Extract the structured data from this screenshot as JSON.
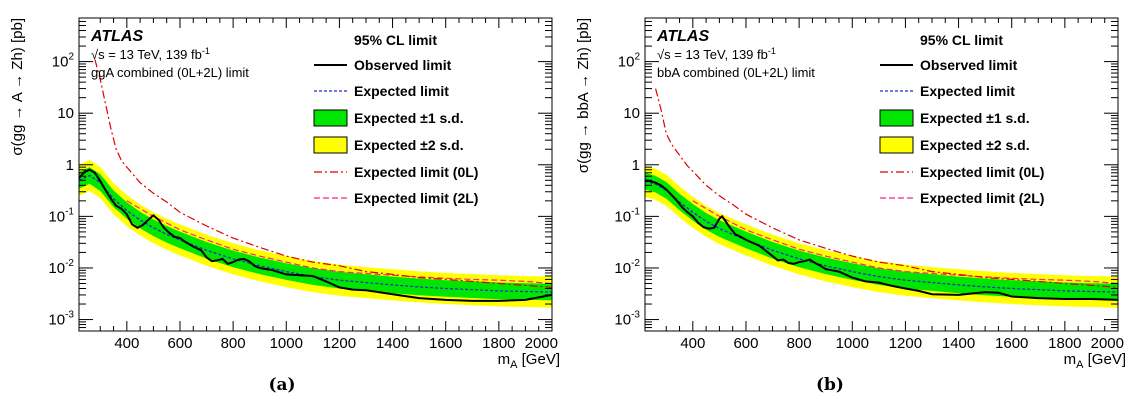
{
  "colors": {
    "observed": "#000000",
    "expected": "#1f2fcc",
    "band1": "#00e600",
    "band2": "#ffff00",
    "exp0L": "#e00000",
    "exp2L": "#ff1f8f"
  },
  "chart_data": [
    {
      "type": "line",
      "panel_label": "(a)",
      "experiment": "ATLAS",
      "energy_text": "√s = 13 TeV, 139 fb",
      "lumi_superscript": "-1",
      "combination_text": "ggA combined (0L+2L) limit",
      "xlabel_main": "m",
      "xlabel_sub": "A",
      "xlabel_unit": " [GeV]",
      "ylabel": "σ(gg → A → Zh) [pb]",
      "xlim": [
        220,
        2000
      ],
      "ylim": [
        0.0006,
        700
      ],
      "y_scale": "log",
      "x_ticks": [
        400,
        600,
        800,
        1000,
        1200,
        1400,
        1600,
        1800,
        2000
      ],
      "y_ticks": [
        {
          "value": 0.001,
          "base": "10",
          "exp": "-3"
        },
        {
          "value": 0.01,
          "base": "10",
          "exp": "-2"
        },
        {
          "value": 0.1,
          "base": "10",
          "exp": "-1"
        },
        {
          "value": 1,
          "base": "1",
          "exp": ""
        },
        {
          "value": 10,
          "base": "10",
          "exp": ""
        },
        {
          "value": 100,
          "base": "10",
          "exp": "2"
        }
      ],
      "legend": {
        "header": "95% CL limit",
        "observed": "Observed limit",
        "expected": "Expected limit",
        "band1": "Expected ±1 s.d.",
        "band2": "Expected ±2 s.d.",
        "exp0L": "Expected limit (0L)",
        "exp2L": "Expected limit (2L)"
      },
      "observed": {
        "x": [
          220,
          240,
          260,
          280,
          300,
          320,
          340,
          360,
          380,
          400,
          420,
          440,
          460,
          480,
          500,
          520,
          540,
          560,
          580,
          600,
          620,
          650,
          680,
          700,
          720,
          740,
          760,
          780,
          800,
          820,
          840,
          860,
          880,
          900,
          950,
          1000,
          1050,
          1100,
          1150,
          1200,
          1250,
          1300,
          1400,
          1500,
          1600,
          1700,
          1800,
          1900,
          2000
        ],
        "y": [
          0.55,
          0.72,
          0.8,
          0.7,
          0.48,
          0.32,
          0.22,
          0.16,
          0.14,
          0.11,
          0.07,
          0.06,
          0.068,
          0.085,
          0.105,
          0.085,
          0.06,
          0.048,
          0.04,
          0.038,
          0.032,
          0.026,
          0.022,
          0.016,
          0.0135,
          0.014,
          0.015,
          0.012,
          0.013,
          0.0145,
          0.015,
          0.0135,
          0.011,
          0.01,
          0.009,
          0.0075,
          0.0072,
          0.007,
          0.0055,
          0.0042,
          0.0038,
          0.0037,
          0.0031,
          0.0026,
          0.0024,
          0.0023,
          0.0023,
          0.0024,
          0.003
        ]
      },
      "expected": {
        "x": [
          220,
          260,
          300,
          350,
          400,
          450,
          500,
          550,
          600,
          700,
          800,
          900,
          1000,
          1100,
          1200,
          1300,
          1400,
          1500,
          1600,
          1700,
          1800,
          1900,
          2000
        ],
        "y": [
          0.5,
          0.62,
          0.45,
          0.22,
          0.13,
          0.085,
          0.06,
          0.045,
          0.035,
          0.022,
          0.015,
          0.011,
          0.0085,
          0.0068,
          0.0058,
          0.0052,
          0.0047,
          0.0043,
          0.004,
          0.0038,
          0.0036,
          0.0035,
          0.0034
        ]
      },
      "band1_factors": [
        0.69,
        1.45
      ],
      "band2_factors": [
        0.5,
        2.0
      ],
      "exp0L": {
        "x": [
          280,
          300,
          320,
          340,
          360,
          380,
          400,
          450,
          500,
          550,
          600,
          700,
          800,
          900,
          1000,
          1100,
          1200,
          1300,
          1400,
          1500,
          1600,
          1700,
          1800,
          1900,
          2000
        ],
        "y": [
          110,
          45,
          15,
          5,
          2,
          1.2,
          0.9,
          0.45,
          0.28,
          0.19,
          0.12,
          0.065,
          0.038,
          0.025,
          0.017,
          0.013,
          0.011,
          0.0085,
          0.0075,
          0.0065,
          0.006,
          0.0055,
          0.005,
          0.0046,
          0.0042
        ]
      },
      "exp2L": {
        "x": [
          400,
          500,
          600,
          700,
          800,
          900,
          1000,
          1100,
          1200,
          1300,
          1400,
          1500,
          1600,
          1700,
          1800,
          1900,
          2000
        ],
        "y": [
          0.2,
          0.1,
          0.055,
          0.035,
          0.023,
          0.017,
          0.013,
          0.01,
          0.0085,
          0.0078,
          0.0072,
          0.0067,
          0.0063,
          0.006,
          0.0058,
          0.0055,
          0.005
        ]
      }
    },
    {
      "type": "line",
      "panel_label": "(b)",
      "experiment": "ATLAS",
      "energy_text": "√s = 13 TeV, 139 fb",
      "lumi_superscript": "-1",
      "combination_text": "bbA combined (0L+2L) limit",
      "xlabel_main": "m",
      "xlabel_sub": "A",
      "xlabel_unit": " [GeV]",
      "ylabel": "σ(gg → bbA → Zh) [pb]",
      "xlim": [
        220,
        2000
      ],
      "ylim": [
        0.0006,
        700
      ],
      "y_scale": "log",
      "x_ticks": [
        400,
        600,
        800,
        1000,
        1200,
        1400,
        1600,
        1800,
        2000
      ],
      "y_ticks": [
        {
          "value": 0.001,
          "base": "10",
          "exp": "-3"
        },
        {
          "value": 0.01,
          "base": "10",
          "exp": "-2"
        },
        {
          "value": 0.1,
          "base": "10",
          "exp": "-1"
        },
        {
          "value": 1,
          "base": "1",
          "exp": ""
        },
        {
          "value": 10,
          "base": "10",
          "exp": ""
        },
        {
          "value": 100,
          "base": "10",
          "exp": "2"
        }
      ],
      "legend": {
        "header": "95% CL limit",
        "observed": "Observed limit",
        "expected": "Expected limit",
        "band1": "Expected ±1 s.d.",
        "band2": "Expected ±2 s.d.",
        "exp0L": "Expected limit (0L)",
        "exp2L": "Expected limit (2L)"
      },
      "observed": {
        "x": [
          220,
          240,
          260,
          280,
          300,
          320,
          340,
          360,
          380,
          400,
          420,
          440,
          460,
          480,
          500,
          510,
          520,
          540,
          560,
          580,
          600,
          650,
          700,
          720,
          740,
          760,
          780,
          800,
          820,
          840,
          860,
          880,
          900,
          950,
          1000,
          1050,
          1100,
          1150,
          1200,
          1250,
          1300,
          1400,
          1500,
          1550,
          1600,
          1700,
          1800,
          1900,
          2000
        ],
        "y": [
          0.5,
          0.48,
          0.45,
          0.4,
          0.33,
          0.26,
          0.2,
          0.15,
          0.12,
          0.1,
          0.075,
          0.062,
          0.058,
          0.06,
          0.09,
          0.1,
          0.085,
          0.06,
          0.045,
          0.04,
          0.035,
          0.027,
          0.017,
          0.014,
          0.0145,
          0.0125,
          0.012,
          0.013,
          0.0135,
          0.0145,
          0.0125,
          0.011,
          0.0095,
          0.0085,
          0.0065,
          0.0055,
          0.0052,
          0.0045,
          0.004,
          0.0036,
          0.0031,
          0.003,
          0.0034,
          0.0033,
          0.0028,
          0.0026,
          0.0025,
          0.0025,
          0.0024
        ]
      },
      "expected": {
        "x": [
          220,
          260,
          300,
          350,
          400,
          450,
          500,
          550,
          600,
          700,
          800,
          900,
          1000,
          1100,
          1200,
          1300,
          1400,
          1500,
          1600,
          1700,
          1800,
          1900,
          2000
        ],
        "y": [
          0.48,
          0.42,
          0.32,
          0.19,
          0.12,
          0.08,
          0.058,
          0.045,
          0.035,
          0.022,
          0.015,
          0.011,
          0.0085,
          0.0068,
          0.0058,
          0.0052,
          0.0047,
          0.0043,
          0.004,
          0.0038,
          0.0036,
          0.0035,
          0.0034
        ]
      },
      "band1_factors": [
        0.69,
        1.45
      ],
      "band2_factors": [
        0.5,
        2.0
      ],
      "exp0L": {
        "x": [
          260,
          280,
          300,
          320,
          340,
          360,
          380,
          400,
          450,
          500,
          550,
          600,
          700,
          800,
          900,
          1000,
          1100,
          1200,
          1300,
          1400,
          1500,
          1600,
          1700,
          1800,
          1900,
          2000
        ],
        "y": [
          30,
          12,
          4,
          2.5,
          1.8,
          1.3,
          0.95,
          0.75,
          0.4,
          0.25,
          0.17,
          0.11,
          0.06,
          0.035,
          0.024,
          0.017,
          0.013,
          0.011,
          0.0085,
          0.0075,
          0.0065,
          0.006,
          0.0055,
          0.005,
          0.0046,
          0.0042
        ]
      },
      "exp2L": {
        "x": [
          400,
          500,
          600,
          700,
          800,
          900,
          1000,
          1100,
          1200,
          1300,
          1400,
          1500,
          1600,
          1700,
          1800,
          1900,
          2000
        ],
        "y": [
          0.2,
          0.1,
          0.055,
          0.035,
          0.023,
          0.017,
          0.013,
          0.01,
          0.0085,
          0.0078,
          0.0072,
          0.0067,
          0.0063,
          0.006,
          0.0058,
          0.0055,
          0.005
        ]
      }
    }
  ]
}
